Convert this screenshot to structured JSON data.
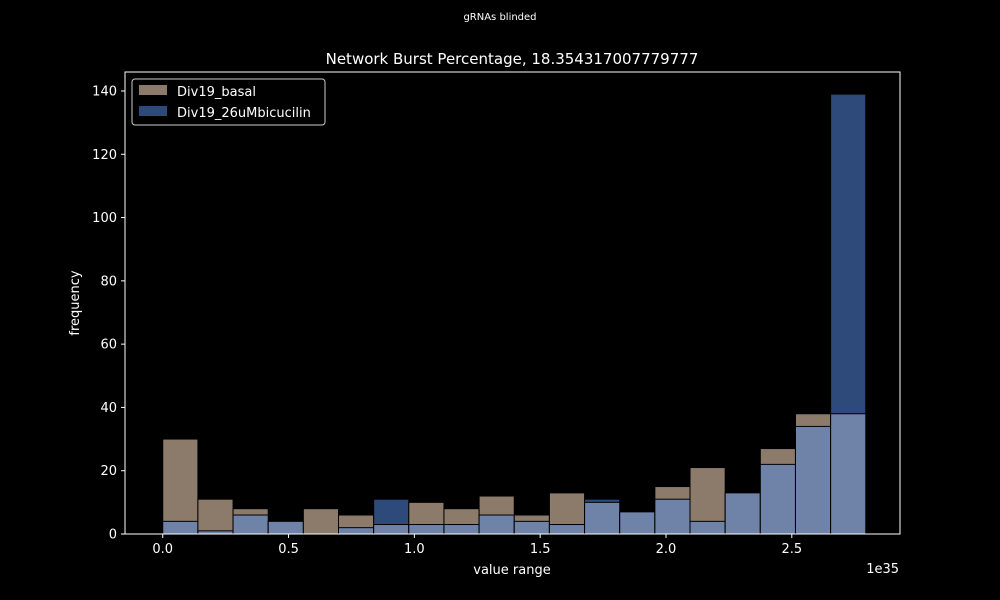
{
  "suptitle": "gRNAs blinded",
  "chart_data": {
    "type": "bar",
    "title": "Network Burst Percentage, 18.354317007779777",
    "xlabel": "value range",
    "ylabel": "frequency",
    "x_offset_label": "1e35",
    "xlim": [
      -0.15,
      2.93
    ],
    "ylim": [
      0,
      146
    ],
    "x_ticks": [
      0.0,
      0.5,
      1.0,
      1.5,
      2.0,
      2.5
    ],
    "x_tick_labels": [
      "0.0",
      "0.5",
      "1.0",
      "1.5",
      "2.0",
      "2.5"
    ],
    "y_ticks": [
      0,
      20,
      40,
      60,
      80,
      100,
      120,
      140
    ],
    "y_tick_labels": [
      "0",
      "20",
      "40",
      "60",
      "80",
      "100",
      "120",
      "140"
    ],
    "bin_edges": [
      0.0,
      0.1397,
      0.2794,
      0.4191,
      0.5588,
      0.6985,
      0.8382,
      0.9779,
      1.1176,
      1.2573,
      1.397,
      1.5367,
      1.6764,
      1.8161,
      1.9558,
      2.0955,
      2.2352,
      2.3749,
      2.5146,
      2.6543,
      2.794
    ],
    "legend_position": "upper-left",
    "series": [
      {
        "name": "Div19_basal",
        "color": "#8c7b6b",
        "values": [
          30,
          11,
          8,
          4,
          8,
          6,
          3,
          10,
          8,
          12,
          6,
          13,
          10,
          7,
          15,
          21,
          13,
          27,
          38,
          38
        ]
      },
      {
        "name": "Div19_26uMbicucilin",
        "color": "#2e4a7a",
        "values": [
          4,
          1,
          6,
          4,
          0,
          2,
          11,
          3,
          3,
          6,
          4,
          3,
          11,
          7,
          11,
          4,
          13,
          22,
          34,
          139
        ]
      }
    ],
    "overlap_color": "#6f82a8"
  }
}
